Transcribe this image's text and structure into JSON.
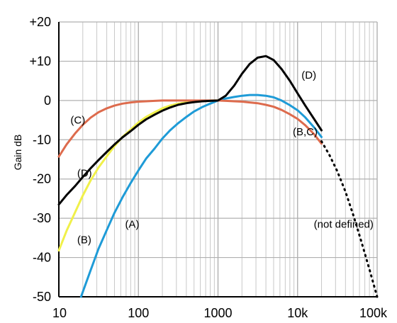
{
  "chart_data": {
    "type": "line",
    "title": "",
    "xlabel": "",
    "ylabel": "Gain dB",
    "x_scale": "log",
    "xlim": [
      10,
      100000
    ],
    "ylim": [
      -50,
      20
    ],
    "x_ticks": [
      10,
      100,
      1000,
      10000,
      100000
    ],
    "x_tick_labels": [
      "10",
      "100",
      "1000",
      "10k",
      "100k"
    ],
    "y_ticks": [
      20,
      10,
      0,
      -10,
      -20,
      -30,
      -40,
      -50
    ],
    "y_tick_labels": [
      "+20",
      "+10",
      "0",
      "-10",
      "-20",
      "-30",
      "-40",
      "-50"
    ],
    "grid": true,
    "series": [
      {
        "name": "(A)",
        "color": "#1E9BD7",
        "x": [
          19,
          25,
          31.5,
          40,
          50,
          63,
          80,
          100,
          125,
          160,
          200,
          250,
          315,
          400,
          500,
          630,
          800,
          1000,
          1250,
          1600,
          2000,
          2500,
          3150,
          4000,
          5000,
          6300,
          8000,
          10000,
          12500,
          16000,
          20000
        ],
        "y": [
          -50,
          -43.3,
          -37.8,
          -33.0,
          -28.6,
          -24.7,
          -21.0,
          -17.8,
          -14.8,
          -12.2,
          -9.7,
          -7.6,
          -5.8,
          -4.2,
          -2.8,
          -1.7,
          -0.8,
          0,
          0.5,
          0.9,
          1.2,
          1.4,
          1.4,
          1.2,
          0.8,
          0.0,
          -1.2,
          -2.5,
          -4.3,
          -6.8,
          -9.3
        ]
      },
      {
        "name": "(B)",
        "color": "#F0F04A",
        "x": [
          10,
          12.5,
          16,
          20,
          25,
          31.5,
          40,
          50,
          63,
          80,
          100,
          125,
          160,
          200,
          250,
          315,
          400,
          500,
          630,
          800,
          1000
        ],
        "y": [
          -38.2,
          -33.2,
          -28.5,
          -24.2,
          -20.4,
          -17.1,
          -14.2,
          -11.6,
          -9.3,
          -7.4,
          -5.6,
          -4.2,
          -3.0,
          -2.0,
          -1.3,
          -0.8,
          -0.5,
          -0.3,
          -0.1,
          0,
          0
        ]
      },
      {
        "name": "(C)",
        "color": "#DD6B4D",
        "x": [
          10,
          12.5,
          16,
          20,
          25,
          31.5,
          40,
          50,
          63,
          80,
          100,
          125,
          160,
          200,
          250,
          315,
          400,
          500,
          630,
          800,
          1000,
          1250,
          1600,
          2000,
          2500,
          3150,
          4000,
          5000,
          6300,
          8000,
          10000,
          12500,
          16000,
          20000
        ],
        "y": [
          -14.3,
          -11.2,
          -8.4,
          -6.2,
          -4.4,
          -3.0,
          -2.0,
          -1.3,
          -0.8,
          -0.5,
          -0.3,
          -0.2,
          -0.1,
          0,
          0,
          0,
          0,
          0,
          0,
          0,
          0,
          -0.1,
          -0.2,
          -0.3,
          -0.5,
          -0.7,
          -1.1,
          -1.6,
          -2.4,
          -3.5,
          -4.7,
          -6.3,
          -8.5,
          -11.0
        ]
      },
      {
        "name": "(D)",
        "color": "#000000",
        "x": [
          10,
          12.5,
          16,
          20,
          25,
          31.5,
          40,
          50,
          63,
          80,
          100,
          125,
          160,
          200,
          250,
          315,
          400,
          500,
          630,
          800,
          1000,
          1250,
          1600,
          2000,
          2500,
          3150,
          4000,
          5000,
          6300,
          8000,
          10000,
          12500,
          16000,
          20000
        ],
        "y": [
          -26.5,
          -24.1,
          -21.8,
          -19.5,
          -17.3,
          -15.2,
          -13.1,
          -11.2,
          -9.4,
          -7.8,
          -6.2,
          -4.8,
          -3.6,
          -2.6,
          -1.8,
          -1.1,
          -0.7,
          -0.4,
          -0.2,
          -0.1,
          0,
          1.2,
          3.8,
          6.8,
          9.3,
          10.9,
          11.3,
          10.3,
          8.0,
          5.0,
          1.8,
          -1.3,
          -4.6,
          -7.6
        ]
      },
      {
        "name": "(not defined)",
        "color": "#000000",
        "dashed": true,
        "x": [
          20000,
          25000,
          31500,
          40000,
          50000,
          63000,
          80000,
          100000
        ],
        "y": [
          -10.4,
          -13.8,
          -18.0,
          -23.2,
          -29.1,
          -35.8,
          -43.0,
          -50.0
        ]
      }
    ],
    "annotations": [
      {
        "text": "(A)",
        "x": 68,
        "y": -31.5
      },
      {
        "text": "(B)",
        "x": 17,
        "y": -35.5
      },
      {
        "text": "(C)",
        "x": 14,
        "y": -5
      },
      {
        "text": "(D)",
        "x": 17,
        "y": -18.5
      },
      {
        "text": "(D)",
        "x": 11200,
        "y": 6.5
      },
      {
        "text": "(B,C)",
        "x": 8700,
        "y": -8
      },
      {
        "text": "(not defined)",
        "x": 16000,
        "y": -31.5
      }
    ]
  }
}
